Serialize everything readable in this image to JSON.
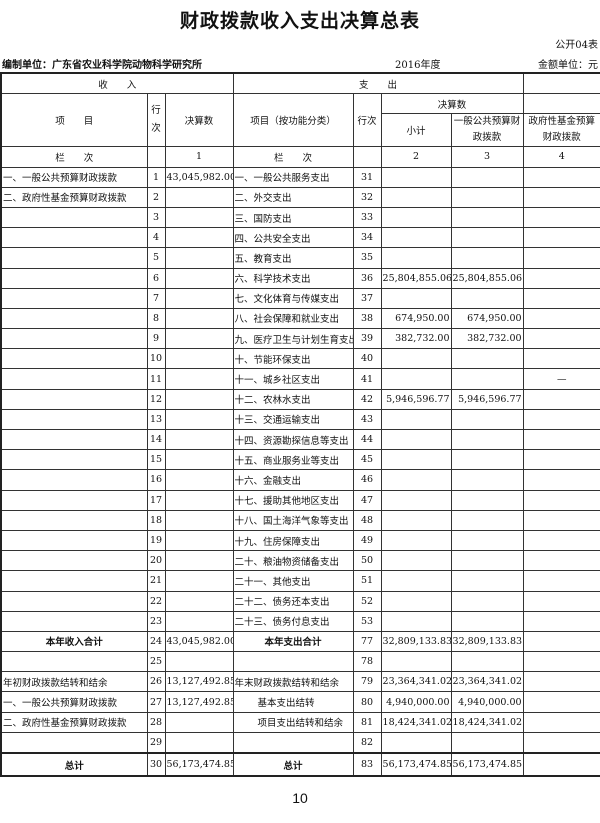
{
  "title": "财政拨款收入支出决算总表",
  "form_no": "公开04表",
  "unit": "编制单位：广东省农业科学院动物科学研究所",
  "year": "2016年度",
  "amount_unit": "金额单位：元",
  "headers": {
    "income": "收　　入",
    "expense": "支　　出",
    "item": "项　　目",
    "line_no": "行次",
    "amount": "决算数",
    "item_func": "项目（按功能分类）",
    "line_no2": "行次",
    "subtotal": "小计",
    "general": "一般公共预算财政拨款",
    "fund": "政府性基金预算财政拨款",
    "col_label": "栏　　次",
    "col1": "1",
    "col2": "2",
    "col3": "3",
    "col4": "4"
  },
  "rows": [
    [
      "一、一般公共预算财政拨款",
      "1",
      "43,045,982.00",
      "一、一般公共服务支出",
      "31",
      "",
      "",
      ""
    ],
    [
      "二、政府性基金预算财政拨款",
      "2",
      "",
      "二、外交支出",
      "32",
      "",
      "",
      ""
    ],
    [
      "",
      "3",
      "",
      "三、国防支出",
      "33",
      "",
      "",
      ""
    ],
    [
      "",
      "4",
      "",
      "四、公共安全支出",
      "34",
      "",
      "",
      ""
    ],
    [
      "",
      "5",
      "",
      "五、教育支出",
      "35",
      "",
      "",
      ""
    ],
    [
      "",
      "6",
      "",
      "六、科学技术支出",
      "36",
      "25,804,855.06",
      "25,804,855.06",
      ""
    ],
    [
      "",
      "7",
      "",
      "七、文化体育与传媒支出",
      "37",
      "",
      "",
      ""
    ],
    [
      "",
      "8",
      "",
      "八、社会保障和就业支出",
      "38",
      "674,950.00",
      "674,950.00",
      ""
    ],
    [
      "",
      "9",
      "",
      "九、医疗卫生与计划生育支出",
      "39",
      "382,732.00",
      "382,732.00",
      ""
    ],
    [
      "",
      "10",
      "",
      "十、节能环保支出",
      "40",
      "",
      "",
      ""
    ],
    [
      "",
      "11",
      "",
      "十一、城乡社区支出",
      "41",
      "",
      "",
      "—"
    ],
    [
      "",
      "12",
      "",
      "十二、农林水支出",
      "42",
      "5,946,596.77",
      "5,946,596.77",
      ""
    ],
    [
      "",
      "13",
      "",
      "十三、交通运输支出",
      "43",
      "",
      "",
      ""
    ],
    [
      "",
      "14",
      "",
      "十四、资源勘探信息等支出",
      "44",
      "",
      "",
      ""
    ],
    [
      "",
      "15",
      "",
      "十五、商业服务业等支出",
      "45",
      "",
      "",
      ""
    ],
    [
      "",
      "16",
      "",
      "十六、金融支出",
      "46",
      "",
      "",
      ""
    ],
    [
      "",
      "17",
      "",
      "十七、援助其他地区支出",
      "47",
      "",
      "",
      ""
    ],
    [
      "",
      "18",
      "",
      "十八、国土海洋气象等支出",
      "48",
      "",
      "",
      ""
    ],
    [
      "",
      "19",
      "",
      "十九、住房保障支出",
      "49",
      "",
      "",
      ""
    ],
    [
      "",
      "20",
      "",
      "二十、粮油物资储备支出",
      "50",
      "",
      "",
      ""
    ],
    [
      "",
      "21",
      "",
      "二十一、其他支出",
      "51",
      "",
      "",
      ""
    ],
    [
      "",
      "22",
      "",
      "二十二、债务还本支出",
      "52",
      "",
      "",
      ""
    ],
    [
      "",
      "23",
      "",
      "二十三、债务付息支出",
      "53",
      "",
      "",
      ""
    ],
    [
      "本年收入合计",
      "24",
      "43,045,982.00",
      "本年支出合计",
      "77",
      "32,809,133.83",
      "32,809,133.83",
      ""
    ],
    [
      "",
      "25",
      "",
      "",
      "78",
      "",
      "",
      ""
    ],
    [
      "年初财政拨款结转和结余",
      "26",
      "13,127,492.85",
      "年末财政拨款结转和结余",
      "79",
      "23,364,341.02",
      "23,364,341.02",
      ""
    ],
    [
      "一、一般公共预算财政拨款",
      "27",
      "13,127,492.85",
      "基本支出结转",
      "80",
      "4,940,000.00",
      "4,940,000.00",
      ""
    ],
    [
      "二、政府性基金预算财政拨款",
      "28",
      "",
      "项目支出结转和结余",
      "81",
      "18,424,341.02",
      "18,424,341.02",
      ""
    ],
    [
      "",
      "29",
      "",
      "",
      "82",
      "",
      "",
      ""
    ],
    [
      "总计",
      "30",
      "56,173,474.85",
      "总计",
      "83",
      "56,173,474.85",
      "56,173,474.85",
      ""
    ]
  ],
  "page_number": "10"
}
